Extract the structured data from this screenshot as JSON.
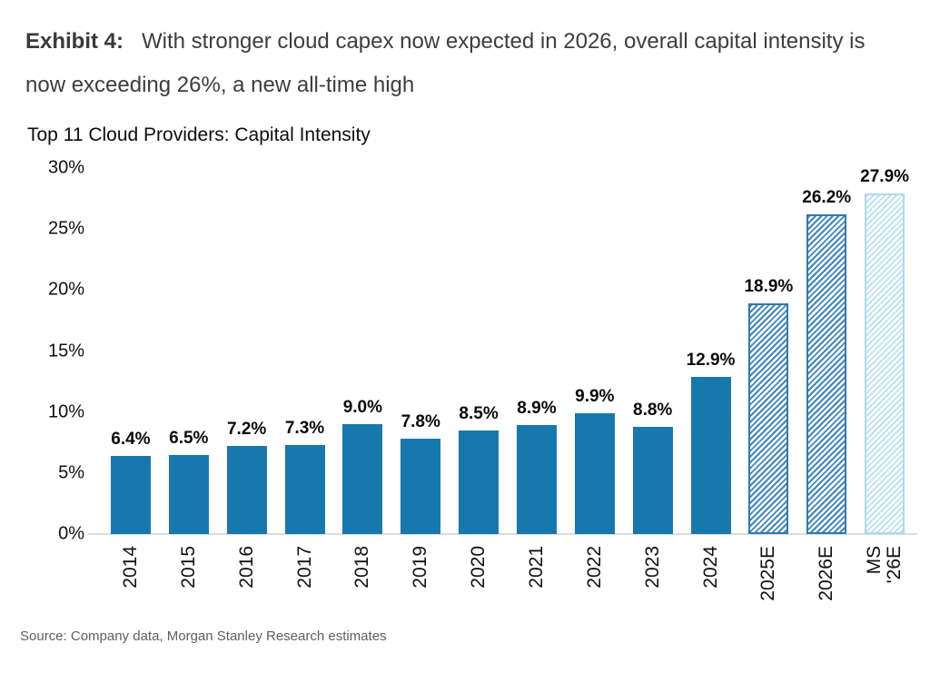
{
  "exhibit": {
    "label": "Exhibit 4:",
    "text": "With stronger cloud capex now expected in 2026, overall capital intensity is now exceeding 26%, a new all-time high"
  },
  "chart_data": {
    "type": "bar",
    "title": "Top 11 Cloud Providers: Capital Intensity",
    "categories": [
      "2014",
      "2015",
      "2016",
      "2017",
      "2018",
      "2019",
      "2020",
      "2021",
      "2022",
      "2023",
      "2024",
      "2025E",
      "2026E",
      "MS\n'26E"
    ],
    "values": [
      6.4,
      6.5,
      7.2,
      7.3,
      9.0,
      7.8,
      8.5,
      8.9,
      9.9,
      8.8,
      12.9,
      18.9,
      26.2,
      27.9
    ],
    "value_labels": [
      "6.4%",
      "6.5%",
      "7.2%",
      "7.3%",
      "9.0%",
      "7.8%",
      "8.5%",
      "8.9%",
      "9.9%",
      "8.8%",
      "12.9%",
      "18.9%",
      "26.2%",
      "27.9%"
    ],
    "bar_styles": [
      "solid",
      "solid",
      "solid",
      "solid",
      "solid",
      "solid",
      "solid",
      "solid",
      "solid",
      "solid",
      "solid",
      "hatched",
      "hatched",
      "hatched_light"
    ],
    "xlabel": "",
    "ylabel": "",
    "ylim": [
      0,
      30
    ],
    "yticks": [
      "30%",
      "25%",
      "20%",
      "15%",
      "10%",
      "5%",
      "0%"
    ],
    "grid": false,
    "legend": "none",
    "colors": {
      "solid_bar": "#1778ae",
      "hatched_stripe": "#3e86bf",
      "hatched_border": "#2d78b0",
      "light_stripe": "#bfe2f2",
      "light_border": "#aed9ec",
      "axis_line": "#dcdcdc",
      "data_label": "#0a0a0a",
      "heading_text": "#3d3d3d",
      "source_text": "#5f5f5f"
    }
  },
  "source": "Source: Company data, Morgan Stanley Research estimates"
}
